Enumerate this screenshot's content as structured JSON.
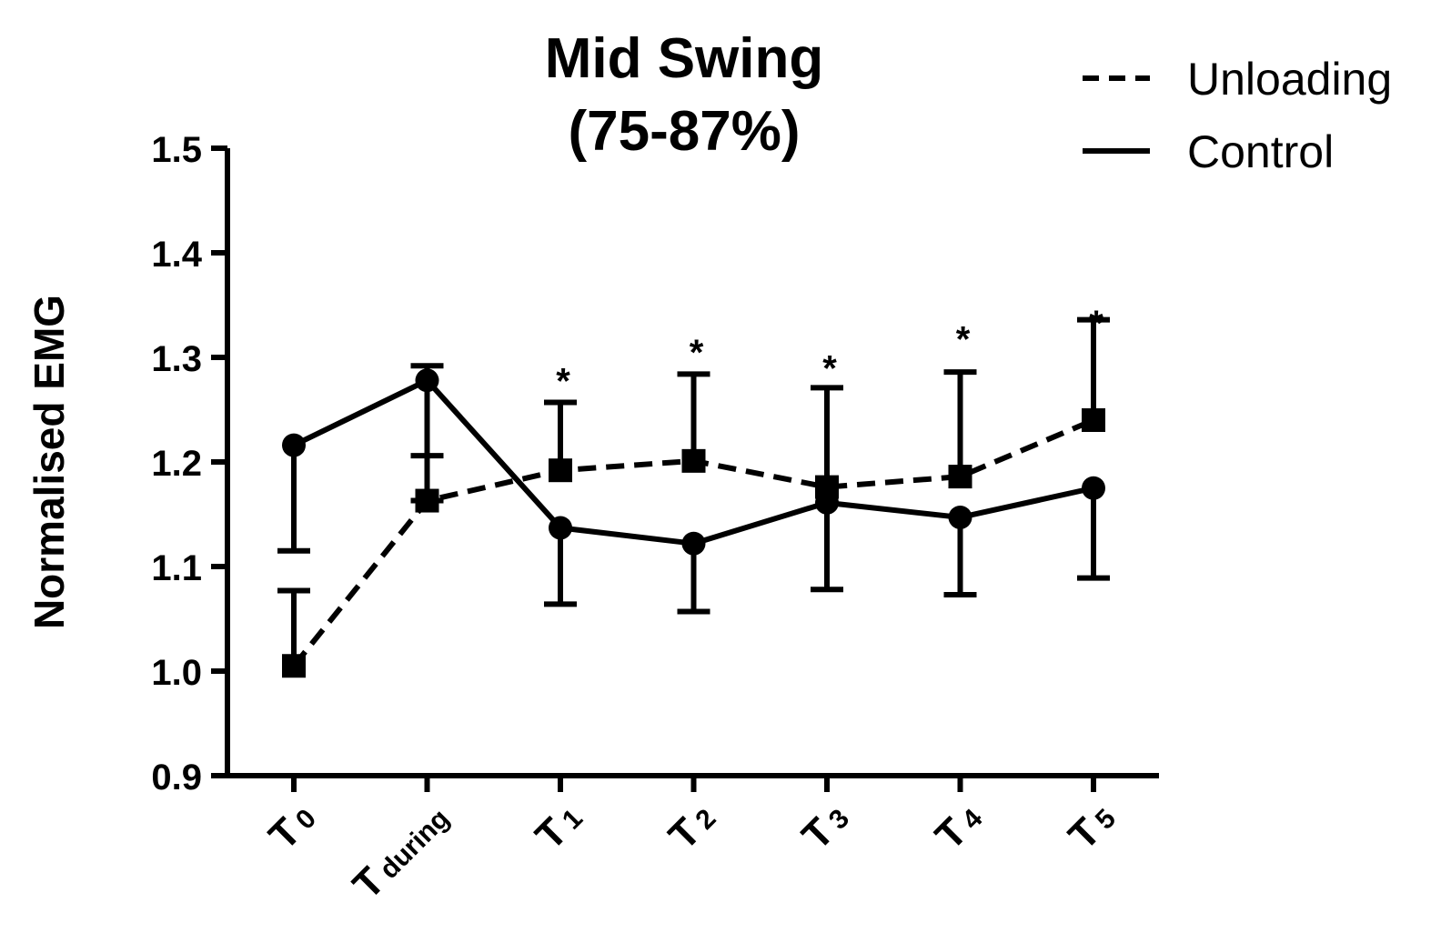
{
  "chart_data": {
    "type": "line",
    "title": "Mid Swing",
    "subtitle": "(75-87%)",
    "xlabel": "",
    "ylabel": "Normalised EMG",
    "ylim": [
      0.9,
      1.5
    ],
    "yticks": [
      "0.9",
      "1.0",
      "1.1",
      "1.2",
      "1.3",
      "1.4",
      "1.5"
    ],
    "yticks_values": [
      0.9,
      1.0,
      1.1,
      1.2,
      1.3,
      1.4,
      1.5
    ],
    "categories": [
      {
        "main": "T",
        "sub": "0"
      },
      {
        "main": "T",
        "sub": "during"
      },
      {
        "main": "T",
        "sub": "1"
      },
      {
        "main": "T",
        "sub": "2"
      },
      {
        "main": "T",
        "sub": "3"
      },
      {
        "main": "T",
        "sub": "4"
      },
      {
        "main": "T",
        "sub": "5"
      }
    ],
    "legend_position": "top-right",
    "series": [
      {
        "name": "Unloading",
        "line_style": "dashed",
        "marker": "square",
        "values": [
          1.005,
          1.163,
          1.192,
          1.201,
          1.176,
          1.186,
          1.24
        ],
        "error_upper": [
          1.077,
          1.206,
          1.257,
          1.284,
          1.271,
          1.286,
          1.336
        ],
        "error_lower": [
          null,
          null,
          null,
          null,
          null,
          null,
          null
        ]
      },
      {
        "name": "Control",
        "line_style": "solid",
        "marker": "circle",
        "values": [
          1.216,
          1.278,
          1.137,
          1.122,
          1.161,
          1.147,
          1.175
        ],
        "error_upper": [
          null,
          1.292,
          null,
          null,
          null,
          null,
          null
        ],
        "error_lower": [
          1.115,
          1.163,
          1.064,
          1.057,
          1.078,
          1.073,
          1.089
        ]
      }
    ],
    "annotations": [
      {
        "category_index": 2,
        "text": "*",
        "y": 1.285
      },
      {
        "category_index": 3,
        "text": "*",
        "y": 1.312
      },
      {
        "category_index": 4,
        "text": "*",
        "y": 1.297
      },
      {
        "category_index": 5,
        "text": "*",
        "y": 1.325
      },
      {
        "category_index": 6,
        "text": "*",
        "y": 1.34
      }
    ]
  },
  "colors": {
    "ink": "#000000",
    "background": "#ffffff"
  }
}
